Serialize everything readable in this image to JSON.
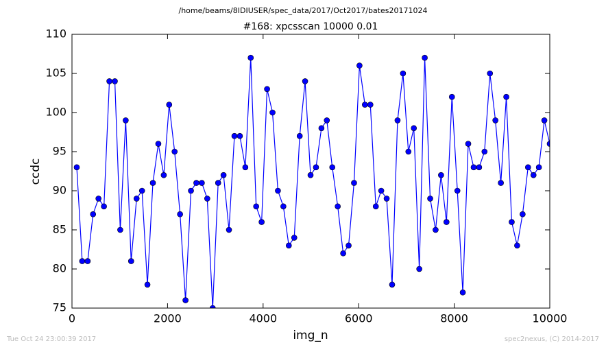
{
  "chart_data": {
    "type": "line",
    "suptitle": "/home/beams/8IDIUSER/spec_data/2017/Oct2017/bates20171024",
    "title": "#168: xpcsscan 10000 0.01",
    "xlabel": "img_n",
    "ylabel": "ccdc",
    "footer_left": "Tue Oct 24 23:00:39 2017",
    "footer_right": "spec2nexus, (C) 2014-2017",
    "xlim": [
      0,
      10000
    ],
    "xticks": [
      0,
      2000,
      4000,
      6000,
      8000,
      10000
    ],
    "ylim": [
      75,
      110
    ],
    "yticks": [
      75,
      80,
      85,
      90,
      95,
      100,
      105,
      110
    ],
    "grid": false,
    "marker": "circle",
    "x": [
      100,
      214,
      328,
      441,
      555,
      669,
      783,
      897,
      1010,
      1124,
      1238,
      1352,
      1466,
      1579,
      1693,
      1807,
      1921,
      2034,
      2148,
      2262,
      2376,
      2490,
      2603,
      2717,
      2831,
      2945,
      3059,
      3172,
      3286,
      3400,
      3514,
      3628,
      3741,
      3855,
      3969,
      4083,
      4197,
      4310,
      4424,
      4538,
      4652,
      4766,
      4879,
      4993,
      5107,
      5221,
      5334,
      5448,
      5562,
      5676,
      5790,
      5903,
      6017,
      6131,
      6245,
      6359,
      6472,
      6586,
      6700,
      6814,
      6928,
      7041,
      7155,
      7269,
      7383,
      7497,
      7610,
      7724,
      7838,
      7952,
      8066,
      8179,
      8293,
      8407,
      8521,
      8634,
      8748,
      8862,
      8976,
      9090,
      9203,
      9317,
      9431,
      9545,
      9659,
      9772,
      9886,
      10000
    ],
    "series": [
      {
        "name": "ccdc",
        "color": "#0000ff",
        "values": [
          93,
          81,
          81,
          87,
          89,
          88,
          104,
          104,
          85,
          99,
          81,
          89,
          90,
          78,
          91,
          96,
          92,
          101,
          95,
          87,
          76,
          90,
          91,
          91,
          89,
          75,
          91,
          92,
          85,
          97,
          97,
          93,
          107,
          88,
          86,
          103,
          100,
          90,
          88,
          83,
          84,
          97,
          104,
          92,
          93,
          98,
          99,
          93,
          88,
          82,
          83,
          91,
          106,
          101,
          101,
          88,
          90,
          89,
          78,
          99,
          105,
          95,
          98,
          80,
          107,
          89,
          85,
          92,
          86,
          102,
          90,
          77,
          96,
          93,
          93,
          95,
          105,
          99,
          91,
          102,
          86,
          83,
          87,
          93,
          92,
          93,
          99,
          96
        ]
      }
    ]
  }
}
